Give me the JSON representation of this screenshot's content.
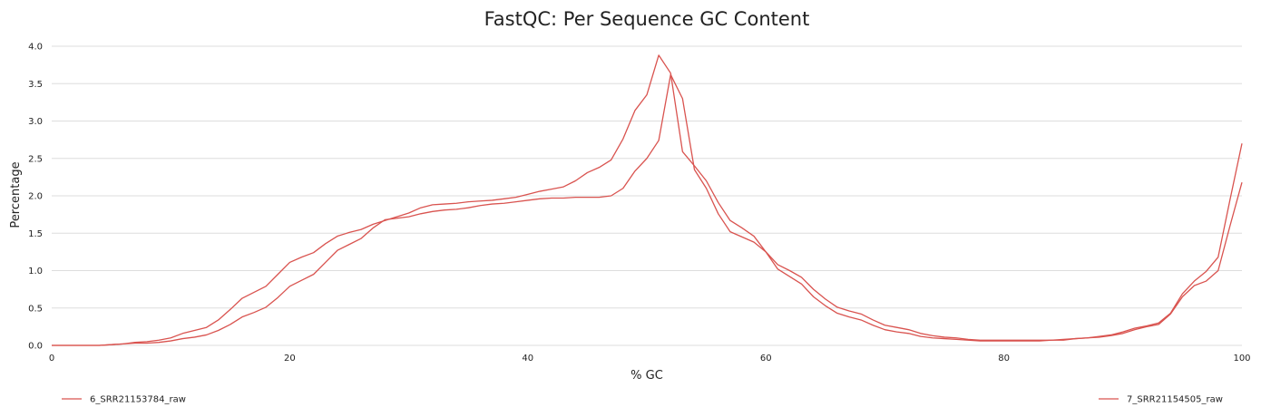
{
  "chart_data": {
    "type": "line",
    "title": "FastQC: Per Sequence GC Content",
    "xlabel": "% GC",
    "ylabel": "Percentage",
    "xlim": [
      0,
      100
    ],
    "ylim": [
      0,
      4.0
    ],
    "x_ticks": [
      "0",
      "20",
      "40",
      "60",
      "80",
      "100"
    ],
    "y_ticks": [
      "0.0",
      "0.5",
      "1.0",
      "1.5",
      "2.0",
      "2.5",
      "3.0",
      "3.5",
      "4.0"
    ],
    "grid": "horizontal",
    "legend_position": "bottom",
    "colors": {
      "series": "#d9534f",
      "grid": "#dddddd"
    },
    "x": [
      0,
      1,
      2,
      3,
      4,
      5,
      6,
      7,
      8,
      9,
      10,
      11,
      12,
      13,
      14,
      15,
      16,
      17,
      18,
      19,
      20,
      21,
      22,
      23,
      24,
      25,
      26,
      27,
      28,
      29,
      30,
      31,
      32,
      33,
      34,
      35,
      36,
      37,
      38,
      39,
      40,
      41,
      42,
      43,
      44,
      45,
      46,
      47,
      48,
      49,
      50,
      51,
      52,
      53,
      54,
      55,
      56,
      57,
      58,
      59,
      60,
      61,
      62,
      63,
      64,
      65,
      66,
      67,
      68,
      69,
      70,
      71,
      72,
      73,
      74,
      75,
      76,
      77,
      78,
      79,
      80,
      81,
      82,
      83,
      84,
      85,
      86,
      87,
      88,
      89,
      90,
      91,
      92,
      93,
      94,
      95,
      96,
      97,
      98,
      99,
      100
    ],
    "series": [
      {
        "name": "6_SRR21153784_raw",
        "values": [
          0,
          0,
          0,
          0,
          0,
          0.01,
          0.02,
          0.03,
          0.03,
          0.04,
          0.06,
          0.09,
          0.11,
          0.14,
          0.2,
          0.28,
          0.38,
          0.44,
          0.51,
          0.64,
          0.79,
          0.87,
          0.95,
          1.11,
          1.27,
          1.35,
          1.43,
          1.57,
          1.68,
          1.7,
          1.72,
          1.76,
          1.79,
          1.81,
          1.82,
          1.84,
          1.87,
          1.89,
          1.9,
          1.92,
          1.94,
          1.96,
          1.97,
          1.97,
          1.98,
          1.98,
          1.98,
          2.0,
          2.1,
          2.33,
          2.5,
          2.74,
          3.62,
          3.3,
          2.35,
          2.1,
          1.76,
          1.52,
          1.45,
          1.38,
          1.25,
          1.02,
          0.92,
          0.82,
          0.65,
          0.53,
          0.43,
          0.38,
          0.34,
          0.27,
          0.21,
          0.18,
          0.16,
          0.12,
          0.1,
          0.09,
          0.08,
          0.07,
          0.06,
          0.06,
          0.06,
          0.06,
          0.06,
          0.06,
          0.07,
          0.07,
          0.09,
          0.1,
          0.11,
          0.13,
          0.16,
          0.21,
          0.25,
          0.28,
          0.42,
          0.65,
          0.8,
          0.86,
          1.0,
          1.6,
          2.18
        ]
      },
      {
        "name": "7_SRR21154505_raw",
        "values": [
          0,
          0,
          0,
          0,
          0,
          0.01,
          0.02,
          0.04,
          0.05,
          0.07,
          0.1,
          0.16,
          0.2,
          0.24,
          0.34,
          0.48,
          0.63,
          0.71,
          0.79,
          0.95,
          1.11,
          1.18,
          1.24,
          1.36,
          1.46,
          1.51,
          1.55,
          1.62,
          1.67,
          1.72,
          1.77,
          1.84,
          1.88,
          1.89,
          1.9,
          1.92,
          1.93,
          1.94,
          1.96,
          1.98,
          2.02,
          2.06,
          2.09,
          2.12,
          2.2,
          2.31,
          2.38,
          2.48,
          2.76,
          3.14,
          3.35,
          3.88,
          3.64,
          2.59,
          2.4,
          2.2,
          1.91,
          1.67,
          1.57,
          1.46,
          1.25,
          1.08,
          1.0,
          0.91,
          0.75,
          0.62,
          0.51,
          0.46,
          0.42,
          0.34,
          0.27,
          0.24,
          0.21,
          0.16,
          0.13,
          0.11,
          0.1,
          0.08,
          0.07,
          0.07,
          0.07,
          0.07,
          0.07,
          0.07,
          0.07,
          0.08,
          0.09,
          0.1,
          0.12,
          0.14,
          0.18,
          0.23,
          0.26,
          0.3,
          0.43,
          0.69,
          0.86,
          0.99,
          1.18,
          1.95,
          2.7
        ]
      }
    ]
  }
}
